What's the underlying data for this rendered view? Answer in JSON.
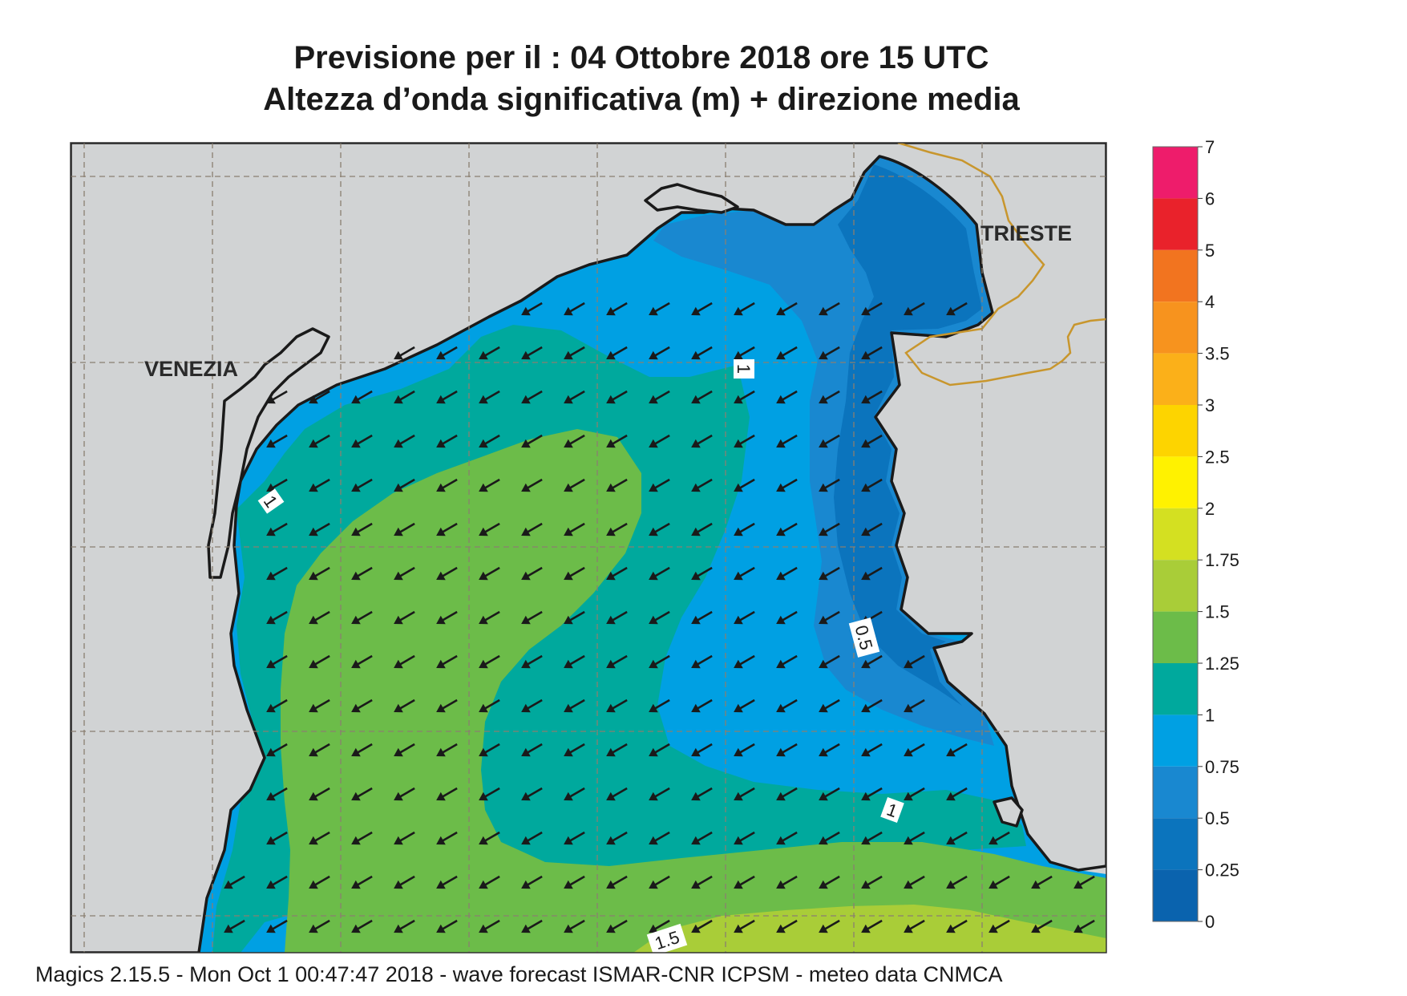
{
  "header": {
    "title": "Previsione per il  :  04  Ottobre  2018   ore 15 UTC",
    "subtitle": "Altezza d’onda significativa (m) + direzione media"
  },
  "map": {
    "place_labels": {
      "venezia": "VENEZIA",
      "trieste": "TRIESTE"
    },
    "contour_labels": {
      "c1a": "1",
      "c1b": "1",
      "c1c": "1",
      "c05": "0.5",
      "c15": "1.5"
    },
    "arrow_direction": "south-west",
    "colors": {
      "land": "#d1d3d4",
      "coast": "#1a1a1a",
      "border": "#c8962d",
      "grid": "#8a7f70"
    }
  },
  "legend": {
    "ticks": [
      "7",
      "6",
      "5",
      "4",
      "3.5",
      "3",
      "2.5",
      "2",
      "1.75",
      "1.5",
      "1.25",
      "1",
      "0.75",
      "0.5",
      "0.25",
      "0"
    ],
    "colors": [
      "#ee1c6b",
      "#e9222b",
      "#f2741f",
      "#f7931e",
      "#fbb019",
      "#fdd400",
      "#fff200",
      "#d4e021",
      "#a9cd38",
      "#6cbc49",
      "#00a99d",
      "#00a0e3",
      "#1988d0",
      "#0b74bd",
      "#0a63ae"
    ]
  },
  "footer": {
    "text": "Magics 2.15.5 - Mon Oct  1 00:47:47 2018 - wave forecast  ISMAR-CNR  ICPSM - meteo data   CNMCA"
  }
}
